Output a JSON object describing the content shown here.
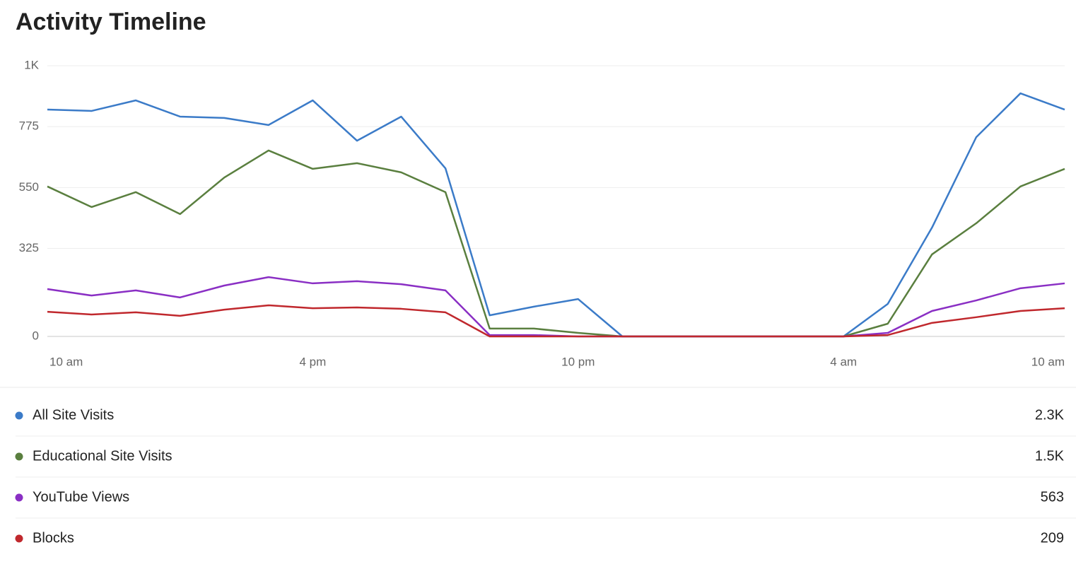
{
  "chart_data": {
    "type": "line",
    "title": "Activity Timeline",
    "x": [
      0,
      1,
      2,
      3,
      4,
      5,
      6,
      7,
      8,
      9,
      10,
      11,
      12,
      13,
      14,
      15,
      16,
      17,
      18,
      19,
      20,
      21,
      22,
      23
    ],
    "xlim": [
      0,
      23
    ],
    "xticks": [
      {
        "value": 0,
        "label": "10 am"
      },
      {
        "value": 6,
        "label": "4 pm"
      },
      {
        "value": 12,
        "label": "10 pm"
      },
      {
        "value": 18,
        "label": "4 am"
      },
      {
        "value": 24,
        "label": "10 am"
      }
    ],
    "ylim": [
      0,
      1000
    ],
    "yticks": [
      0,
      325,
      550,
      775,
      {
        "value": 1000,
        "label": "1K"
      }
    ],
    "grid": true,
    "series": [
      {
        "name": "All Site Visits",
        "color": "#3b7bc8",
        "total": "2.3K",
        "values": [
          838,
          833,
          872,
          812,
          807,
          781,
          872,
          723,
          812,
          621,
          78,
          110,
          138,
          0,
          0,
          0,
          0,
          0,
          0,
          120,
          402,
          736,
          898,
          838
        ]
      },
      {
        "name": "Educational Site Visits",
        "color": "#5a7f3f",
        "total": "1.5K",
        "values": [
          554,
          478,
          533,
          452,
          587,
          687,
          619,
          640,
          606,
          533,
          29,
          29,
          13,
          0,
          0,
          0,
          0,
          0,
          0,
          47,
          303,
          418,
          554,
          619
        ]
      },
      {
        "name": "YouTube Views",
        "color": "#8a2fc4",
        "total": "563",
        "values": [
          175,
          151,
          170,
          144,
          188,
          219,
          196,
          204,
          193,
          170,
          5,
          5,
          0,
          0,
          0,
          0,
          0,
          0,
          0,
          13,
          94,
          133,
          178,
          196
        ]
      },
      {
        "name": "Blocks",
        "color": "#c0282d",
        "total": "209",
        "values": [
          91,
          81,
          89,
          76,
          99,
          115,
          104,
          107,
          102,
          89,
          0,
          0,
          0,
          0,
          0,
          0,
          0,
          0,
          0,
          5,
          50,
          71,
          94,
          104
        ]
      }
    ]
  }
}
